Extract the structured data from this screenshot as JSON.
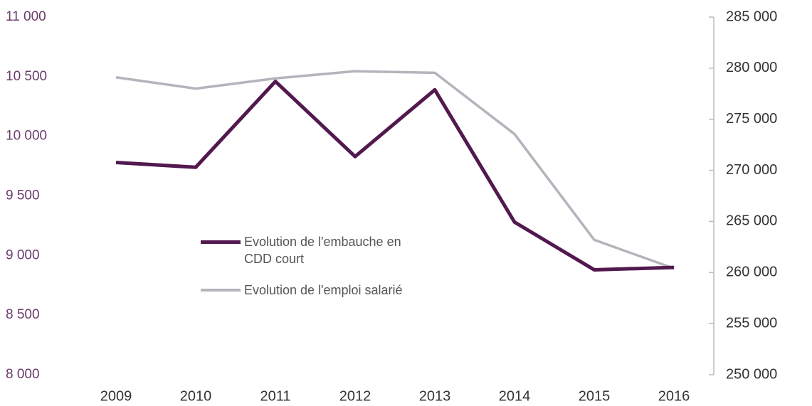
{
  "chart_data": {
    "type": "line",
    "categories": [
      "2009",
      "2010",
      "2011",
      "2012",
      "2013",
      "2014",
      "2015",
      "2016"
    ],
    "series": [
      {
        "name": "Evolution de l'embauche en CDD court",
        "color": "#52194f",
        "values": [
          9780,
          9740,
          10460,
          9830,
          10390,
          9280,
          8880,
          8900
        ]
      },
      {
        "name": "Evolution de l'emploi salarié",
        "color": "#b5b3bb",
        "axis": "y2",
        "values": [
          279100,
          278000,
          279000,
          279700,
          279550,
          273550,
          263200,
          260400
        ]
      }
    ],
    "ylim": [
      8000,
      11000
    ],
    "yticks": [
      {
        "value": 8000,
        "label": "8 000"
      },
      {
        "value": 8500,
        "label": "8 500"
      },
      {
        "value": 9000,
        "label": "9 000"
      },
      {
        "value": 9500,
        "label": "9 500"
      },
      {
        "value": 10000,
        "label": "10 000"
      },
      {
        "value": 10500,
        "label": "10 500"
      },
      {
        "value": 11000,
        "label": "11 000"
      }
    ],
    "y2lim": [
      250000,
      285000
    ],
    "y2ticks": [
      {
        "value": 250000,
        "label": "250 000"
      },
      {
        "value": 255000,
        "label": "255 000"
      },
      {
        "value": 260000,
        "label": "260 000"
      },
      {
        "value": 265000,
        "label": "265 000"
      },
      {
        "value": 270000,
        "label": "270 000"
      },
      {
        "value": 275000,
        "label": "275 000"
      },
      {
        "value": 280000,
        "label": "280 000"
      },
      {
        "value": 285000,
        "label": "285 000"
      }
    ]
  }
}
